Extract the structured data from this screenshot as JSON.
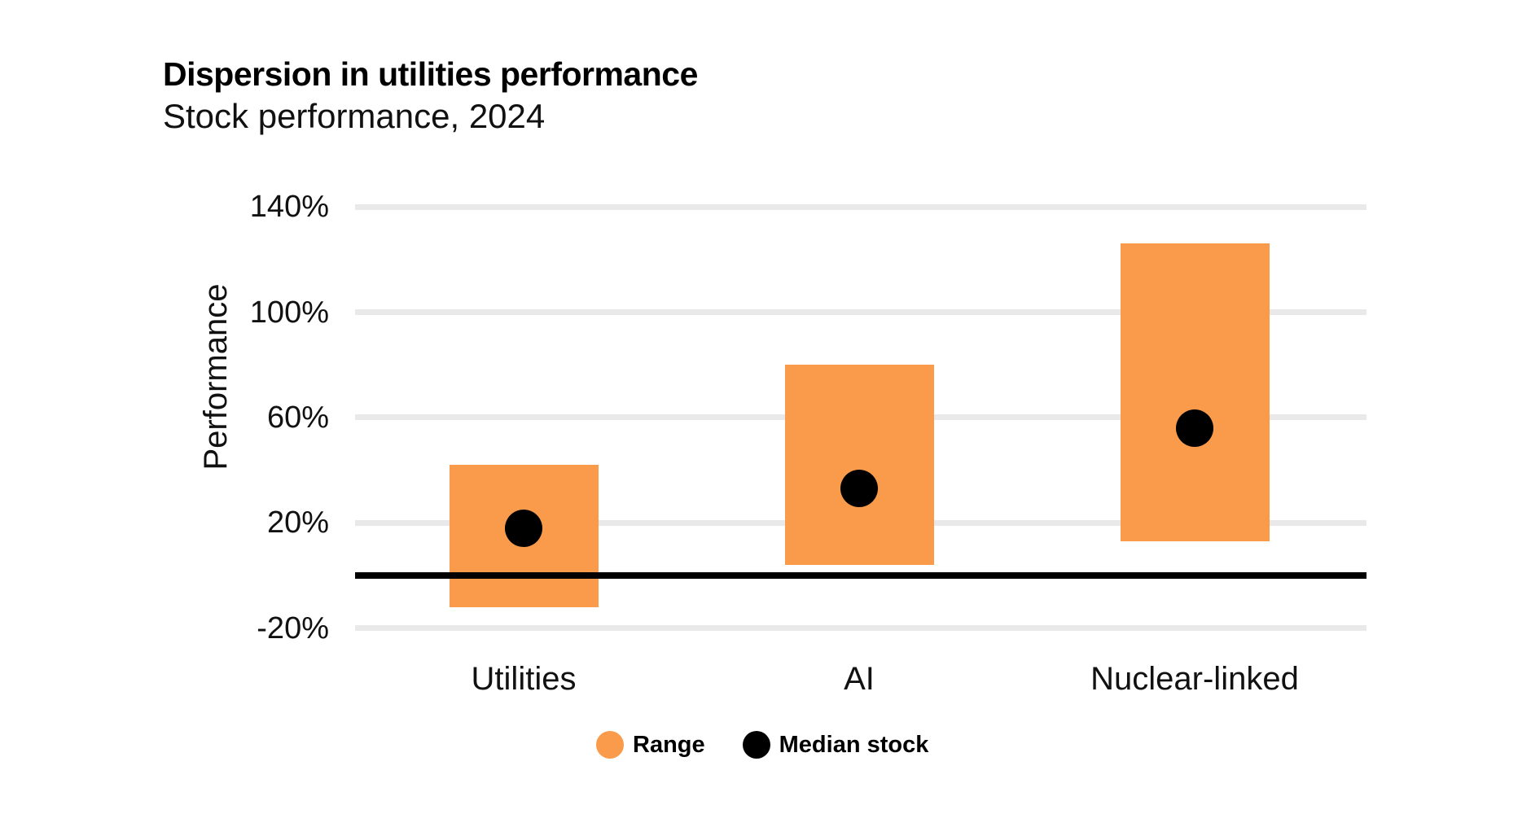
{
  "header": {
    "title": "Dispersion in utilities performance",
    "subtitle": "Stock performance, 2024"
  },
  "y_axis": {
    "label": "Performance",
    "ticks": [
      {
        "label": "140%",
        "value": 140
      },
      {
        "label": "100%",
        "value": 100
      },
      {
        "label": "60%",
        "value": 60
      },
      {
        "label": "20%",
        "value": 20
      },
      {
        "label": "-20%",
        "value": -20
      }
    ]
  },
  "legend": {
    "items": [
      {
        "label": "Range",
        "color": "#FA9A4B",
        "shape": "circle"
      },
      {
        "label": "Median stock",
        "color": "#000000",
        "shape": "circle"
      }
    ]
  },
  "colors": {
    "range_bar": "#FA9A4B",
    "median_dot": "#000000",
    "gridline": "#E9E9E9",
    "zero_line": "#000000",
    "text": "#111111"
  },
  "chart_data": {
    "type": "bar",
    "subtype": "floating-range-bars-with-median-dot",
    "title": "Dispersion in utilities performance",
    "subtitle": "Stock performance, 2024",
    "categories": [
      "Utilities",
      "AI",
      "Nuclear-linked"
    ],
    "series": [
      {
        "name": "Range low (%)",
        "values": [
          -12,
          4,
          13
        ]
      },
      {
        "name": "Range high (%)",
        "values": [
          42,
          80,
          126
        ]
      },
      {
        "name": "Median stock (%)",
        "values": [
          18,
          33,
          56
        ]
      }
    ],
    "xlabel": "",
    "ylabel": "Performance",
    "ylim": [
      -20,
      140
    ],
    "yticks": [
      140,
      100,
      60,
      20,
      -20
    ],
    "grid": true,
    "zero_line": true,
    "legend_position": "bottom"
  }
}
